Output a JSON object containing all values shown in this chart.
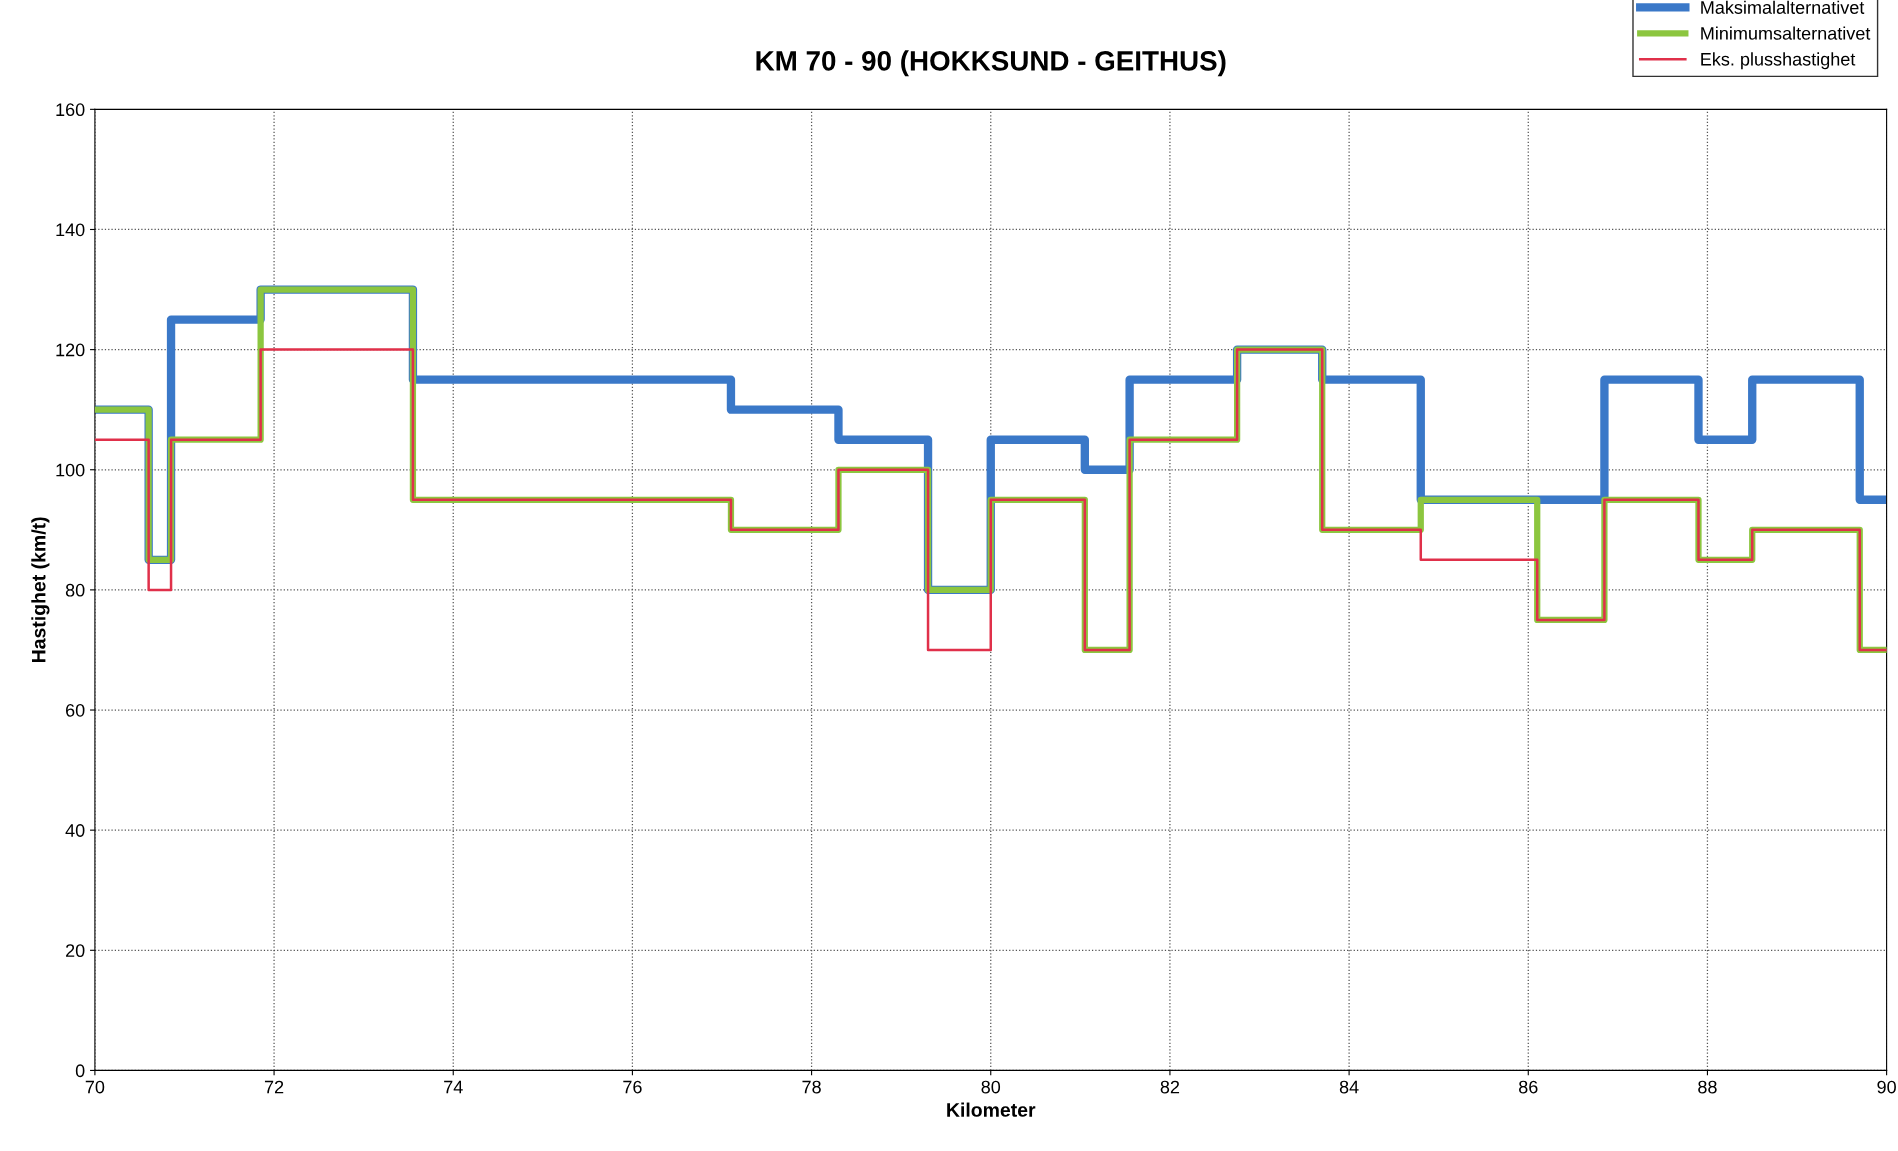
{
  "chart_data": {
    "type": "step",
    "title": "KM 70 - 90 (HOKKSUND - GEITHUS)",
    "xlabel": "Kilometer",
    "ylabel": "Hastighet (km/t)",
    "xlim": [
      70,
      90
    ],
    "xticks": [
      70,
      72,
      74,
      76,
      78,
      80,
      82,
      84,
      86,
      88,
      90
    ],
    "ylim": [
      0,
      160
    ],
    "yticks": [
      0,
      20,
      40,
      60,
      80,
      100,
      120,
      140,
      160
    ],
    "grid": true,
    "legend": "top right",
    "line_style": "solid",
    "marker": "none",
    "series": [
      {
        "name": "Maksimalalternativet",
        "color": "#3a78c8",
        "x": [
          70,
          70.6,
          70.85,
          71.85,
          73.55,
          77.1,
          78.3,
          79.3,
          80,
          81.05,
          81.55,
          82.75,
          83.7,
          84.8,
          86.85,
          87.9,
          88.5,
          89.7,
          90
        ],
        "values": [
          110,
          85,
          125,
          130,
          115,
          110,
          105,
          80,
          105,
          100,
          115,
          120,
          115,
          95,
          115,
          105,
          115,
          95,
          95
        ]
      },
      {
        "name": "Minimumsalternativet",
        "color": "#8cc63f",
        "x": [
          70,
          70.6,
          70.85,
          71.85,
          73.55,
          77.1,
          78.3,
          79.3,
          80,
          81.05,
          81.55,
          82.75,
          83.7,
          84.8,
          86.1,
          86.85,
          87.9,
          88.5,
          89.7,
          90
        ],
        "values": [
          110,
          85,
          105,
          130,
          95,
          90,
          100,
          80,
          95,
          70,
          105,
          120,
          90,
          95,
          75,
          95,
          85,
          90,
          70,
          70
        ]
      },
      {
        "name": "Eks. plusshastighet",
        "color": "#e0304a",
        "x": [
          70,
          70.6,
          70.85,
          71.85,
          73.55,
          77.1,
          78.3,
          79.3,
          80,
          81.05,
          81.55,
          82.75,
          83.7,
          84.8,
          86.1,
          86.85,
          87.9,
          88.5,
          89.7,
          90
        ],
        "values": [
          105,
          80,
          105,
          120,
          95,
          90,
          100,
          70,
          95,
          70,
          105,
          120,
          90,
          85,
          75,
          95,
          85,
          90,
          70,
          70
        ]
      }
    ]
  }
}
